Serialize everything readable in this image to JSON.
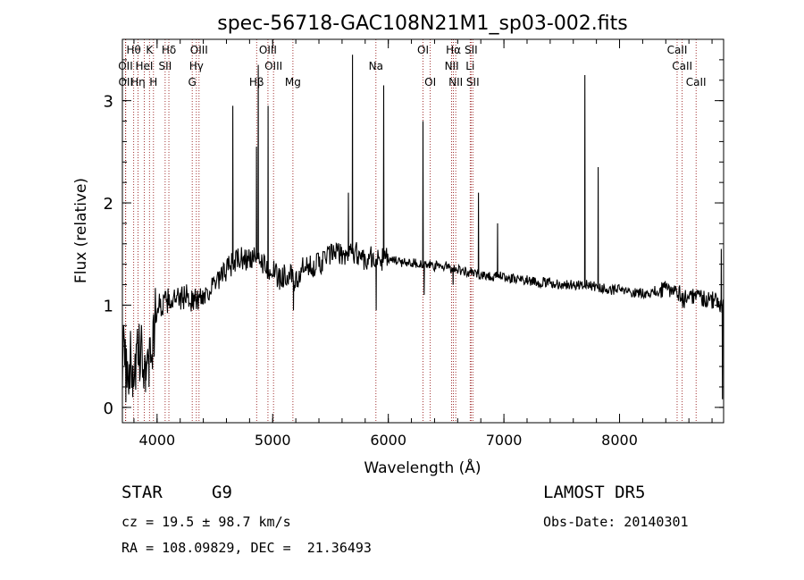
{
  "chart_data": {
    "type": "line",
    "title": "spec-56718-GAC108N21M1_sp03-002.fits",
    "xlabel": "Wavelength (Å)",
    "ylabel": "Flux (relative)",
    "xlim": [
      3700,
      8900
    ],
    "ylim": [
      -0.15,
      3.6
    ],
    "xticks": [
      4000,
      5000,
      6000,
      7000,
      8000
    ],
    "yticks": [
      0,
      1,
      2,
      3
    ],
    "grid": false,
    "line_color": "#000000",
    "marker_color": "#8b0000",
    "continuum": [
      [
        3700,
        0.5
      ],
      [
        3750,
        0.45
      ],
      [
        3800,
        0.4
      ],
      [
        3850,
        0.5
      ],
      [
        3900,
        0.45
      ],
      [
        3950,
        0.55
      ],
      [
        4000,
        1.0
      ],
      [
        4050,
        1.0
      ],
      [
        4100,
        1.05
      ],
      [
        4150,
        1.05
      ],
      [
        4200,
        1.05
      ],
      [
        4250,
        1.1
      ],
      [
        4300,
        1.05
      ],
      [
        4350,
        1.05
      ],
      [
        4400,
        1.1
      ],
      [
        4450,
        1.15
      ],
      [
        4500,
        1.2
      ],
      [
        4550,
        1.25
      ],
      [
        4600,
        1.35
      ],
      [
        4650,
        1.4
      ],
      [
        4700,
        1.45
      ],
      [
        4750,
        1.45
      ],
      [
        4800,
        1.45
      ],
      [
        4850,
        1.45
      ],
      [
        4900,
        1.45
      ],
      [
        4950,
        1.35
      ],
      [
        5000,
        1.35
      ],
      [
        5050,
        1.25
      ],
      [
        5100,
        1.3
      ],
      [
        5150,
        1.3
      ],
      [
        5200,
        1.2
      ],
      [
        5250,
        1.35
      ],
      [
        5300,
        1.35
      ],
      [
        5350,
        1.4
      ],
      [
        5400,
        1.4
      ],
      [
        5450,
        1.45
      ],
      [
        5500,
        1.5
      ],
      [
        5550,
        1.5
      ],
      [
        5600,
        1.5
      ],
      [
        5650,
        1.5
      ],
      [
        5700,
        1.5
      ],
      [
        5750,
        1.5
      ],
      [
        5800,
        1.45
      ],
      [
        5850,
        1.48
      ],
      [
        5900,
        1.45
      ],
      [
        5950,
        1.45
      ],
      [
        6000,
        1.45
      ],
      [
        6100,
        1.42
      ],
      [
        6200,
        1.42
      ],
      [
        6300,
        1.4
      ],
      [
        6400,
        1.38
      ],
      [
        6500,
        1.38
      ],
      [
        6600,
        1.35
      ],
      [
        6700,
        1.32
      ],
      [
        6800,
        1.3
      ],
      [
        6900,
        1.28
      ],
      [
        7000,
        1.28
      ],
      [
        7100,
        1.25
      ],
      [
        7200,
        1.25
      ],
      [
        7300,
        1.22
      ],
      [
        7400,
        1.22
      ],
      [
        7500,
        1.2
      ],
      [
        7600,
        1.2
      ],
      [
        7700,
        1.2
      ],
      [
        7800,
        1.18
      ],
      [
        7900,
        1.15
      ],
      [
        8000,
        1.15
      ],
      [
        8100,
        1.12
      ],
      [
        8200,
        1.12
      ],
      [
        8300,
        1.12
      ],
      [
        8400,
        1.15
      ],
      [
        8500,
        1.15
      ],
      [
        8550,
        1.05
      ],
      [
        8600,
        1.1
      ],
      [
        8700,
        1.08
      ],
      [
        8800,
        1.05
      ],
      [
        8900,
        1.0
      ]
    ],
    "peaks": [
      [
        3730,
        0.05
      ],
      [
        3790,
        0.1
      ],
      [
        3900,
        0.15
      ],
      [
        3930,
        0.2
      ],
      [
        4655,
        2.95
      ],
      [
        4860,
        2.55
      ],
      [
        4875,
        3.35
      ],
      [
        4960,
        2.95
      ],
      [
        5655,
        2.1
      ],
      [
        5690,
        3.45
      ],
      [
        5960,
        3.15
      ],
      [
        6300,
        2.8
      ],
      [
        6780,
        2.1
      ],
      [
        6945,
        1.8
      ],
      [
        7700,
        3.25
      ],
      [
        7815,
        2.35
      ],
      [
        8880,
        1.55
      ]
    ],
    "dips": [
      [
        5180,
        0.95
      ],
      [
        5895,
        0.95
      ],
      [
        6310,
        1.1
      ],
      [
        6560,
        1.2
      ],
      [
        8890,
        0.08
      ]
    ],
    "lines_top": [
      {
        "label": "Hθ",
        "x": 3798
      },
      {
        "label": "K",
        "x": 3934
      },
      {
        "label": "Hδ",
        "x": 4102
      },
      {
        "label": "OIII",
        "x": 4363
      },
      {
        "label": "OIII",
        "x": 4959
      },
      {
        "label": "OI",
        "x": 6300
      },
      {
        "label": "Hα",
        "x": 6563
      },
      {
        "label": "SII",
        "x": 6716
      },
      {
        "label": "CaII",
        "x": 8498
      }
    ],
    "lines_mid": [
      {
        "label": "OII",
        "x": 3727
      },
      {
        "label": "HeI",
        "x": 3889
      },
      {
        "label": "SII",
        "x": 4070
      },
      {
        "label": "Hγ",
        "x": 4340
      },
      {
        "label": "OIII",
        "x": 5007
      },
      {
        "label": "Na",
        "x": 5893
      },
      {
        "label": "NII",
        "x": 6548
      },
      {
        "label": "Li",
        "x": 6708
      },
      {
        "label": "CaII",
        "x": 8542
      }
    ],
    "lines_low": [
      {
        "label": "OII",
        "x": 3729
      },
      {
        "label": "Hη",
        "x": 3835
      },
      {
        "label": "H",
        "x": 3969
      },
      {
        "label": "G",
        "x": 4304
      },
      {
        "label": "Hβ",
        "x": 4861
      },
      {
        "label": "Mg",
        "x": 5175
      },
      {
        "label": "OI",
        "x": 6363
      },
      {
        "label": "NII",
        "x": 6583
      },
      {
        "label": "SII",
        "x": 6731
      },
      {
        "label": "CaII",
        "x": 8662
      }
    ]
  },
  "info": {
    "object_class": "STAR",
    "subclass": "G9",
    "survey": "LAMOST DR5",
    "redshift": "cz = 19.5 ± 98.7 km/s",
    "obs_date": "Obs-Date: 20140301",
    "coords": "RA = 108.09829, DEC =  21.36493"
  }
}
